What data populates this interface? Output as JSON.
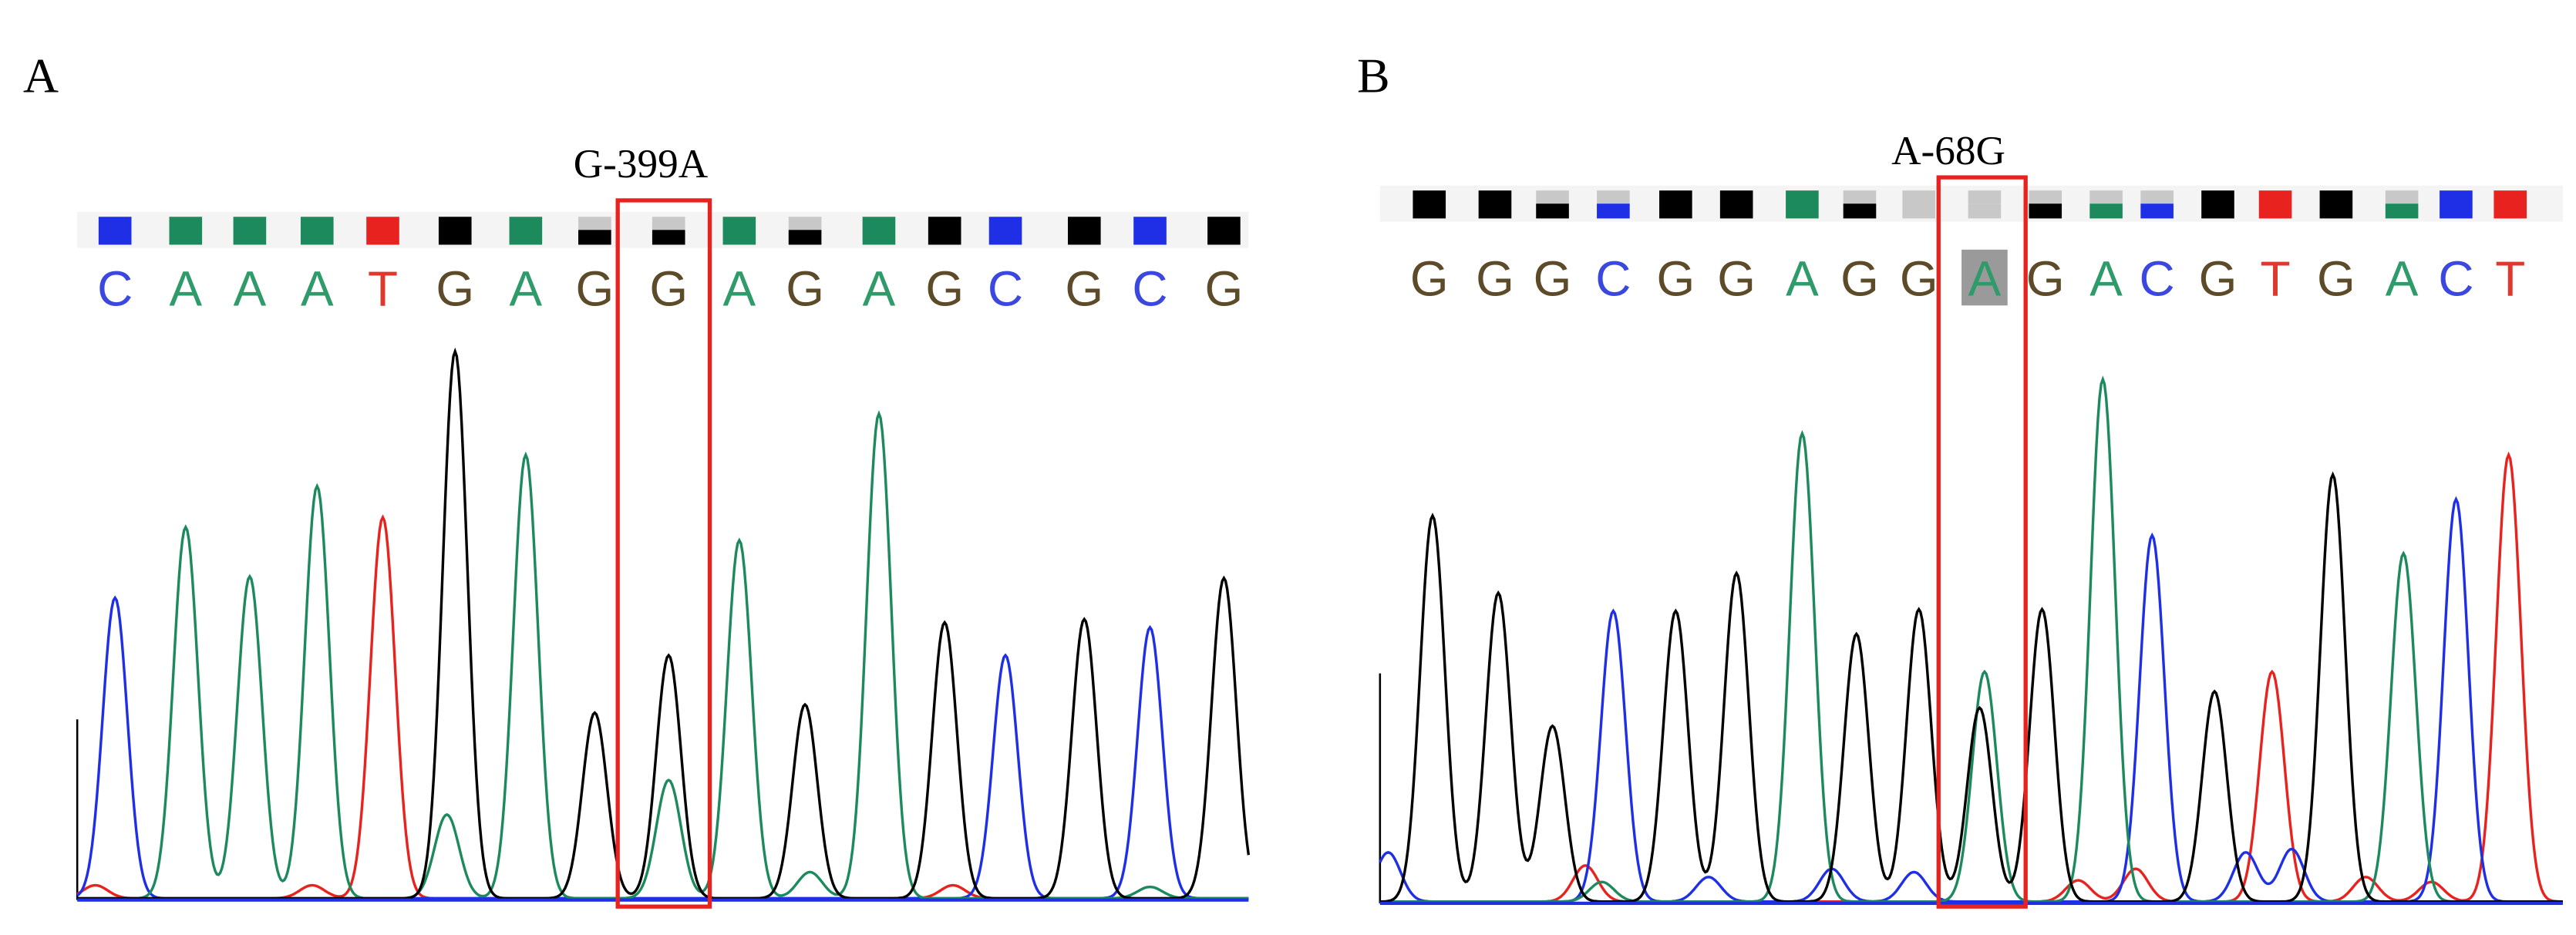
{
  "panels": [
    {
      "label": "A",
      "title": "G-399A",
      "bases": [
        "C",
        "A",
        "A",
        "A",
        "T",
        "G",
        "A",
        "G",
        "G",
        "A",
        "G",
        "A",
        "G",
        "C",
        "G",
        "C",
        "G"
      ]
    },
    {
      "label": "B",
      "title": "A-68G",
      "bases": [
        "G",
        "G",
        "G",
        "C",
        "G",
        "G",
        "A",
        "G",
        "G",
        "A",
        "G",
        "A",
        "C",
        "G",
        "T",
        "G",
        "A",
        "C",
        "T"
      ]
    }
  ]
}
